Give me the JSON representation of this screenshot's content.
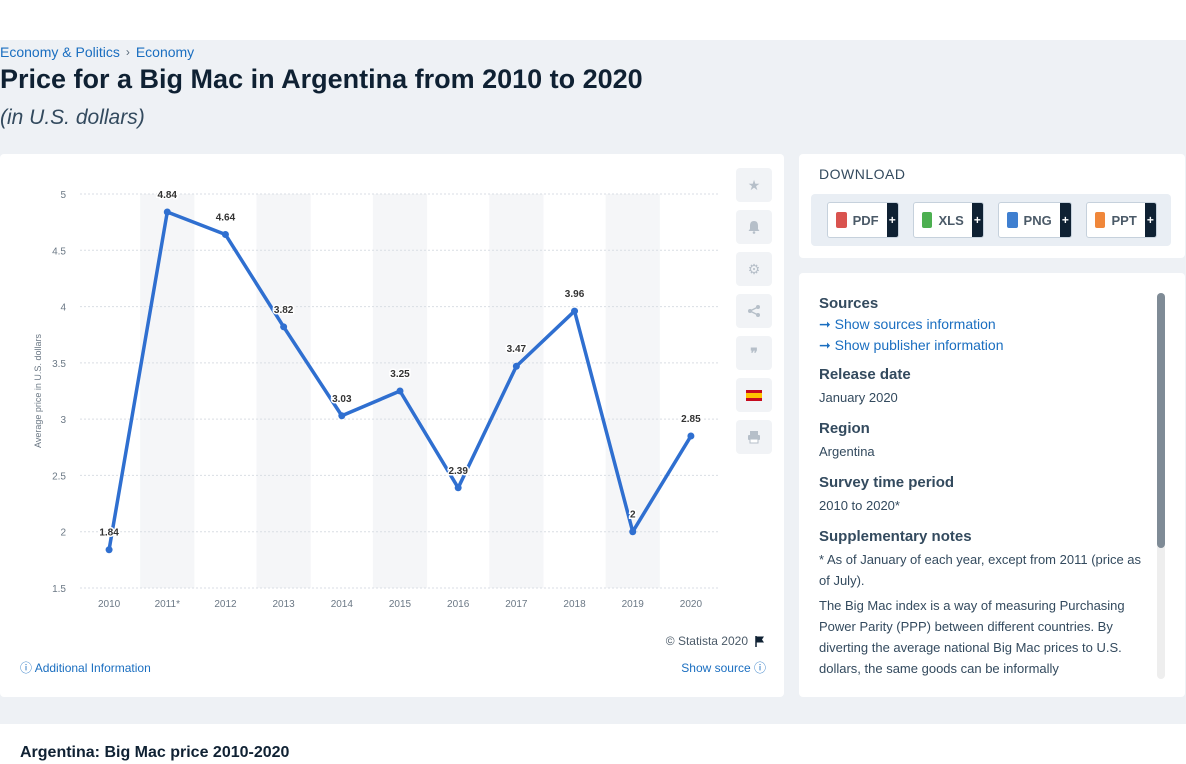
{
  "breadcrumb": {
    "item1": "Economy & Politics",
    "item2": "Economy",
    "separator": "›"
  },
  "page_title": "Price for a Big Mac in Argentina from 2010 to 2020",
  "page_subtitle": "(in U.S. dollars)",
  "chart_data": {
    "type": "line",
    "categories": [
      "2010",
      "2011*",
      "2012",
      "2013",
      "2014",
      "2015",
      "2016",
      "2017",
      "2018",
      "2019",
      "2020"
    ],
    "values": [
      1.84,
      4.84,
      4.64,
      3.82,
      3.03,
      3.25,
      2.39,
      3.47,
      3.96,
      2,
      2.85
    ],
    "value_labels": [
      "1.84",
      "4.84",
      "4.64",
      "3.82",
      "3.03",
      "3.25",
      "2.39",
      "3.47",
      "3.96",
      "2",
      "2.85"
    ],
    "ylabel": "Average price in U.S. dollars",
    "ylim": [
      1.5,
      5
    ],
    "yticks": [
      "1.5",
      "2",
      "2.5",
      "3",
      "3.5",
      "4",
      "4.5",
      "5"
    ],
    "line_color": "#2f6fd0",
    "grid": true
  },
  "chart_footer": {
    "credit": "© Statista 2020",
    "additional_info": "Additional Information",
    "show_source": "Show source"
  },
  "tools": [
    "star-icon",
    "bell-icon",
    "gear-icon",
    "share-icon",
    "quote-icon",
    "flag-spain-icon",
    "print-icon"
  ],
  "download": {
    "title": "DOWNLOAD",
    "buttons": [
      {
        "label": "PDF",
        "icon_color": "#d9534f"
      },
      {
        "label": "XLS",
        "icon_color": "#4caf50"
      },
      {
        "label": "PNG",
        "icon_color": "#3f7fd0"
      },
      {
        "label": "PPT",
        "icon_color": "#f0873a"
      }
    ],
    "plus": "+"
  },
  "info": {
    "sources_heading": "Sources",
    "sources_link": "Show sources information",
    "publisher_link": "Show publisher information",
    "release_heading": "Release date",
    "release_value": "January 2020",
    "region_heading": "Region",
    "region_value": "Argentina",
    "survey_heading": "Survey time period",
    "survey_value": "2010 to 2020*",
    "notes_heading": "Supplementary notes",
    "notes_line1": "* As of January of each year, except from 2011 (price as of July).",
    "notes_line2": "The Big Mac index is a way of measuring Purchasing Power Parity (PPP) between different countries. By diverting the average national Big Mac prices to U.S. dollars, the same goods can be informally"
  },
  "bottom_title": "Argentina: Big Mac price 2010-2020"
}
